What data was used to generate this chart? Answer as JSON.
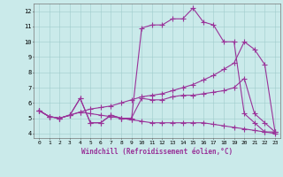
{
  "xlabel": "Windchill (Refroidissement éolien,°C)",
  "xlim": [
    -0.5,
    23.5
  ],
  "ylim": [
    3.7,
    12.5
  ],
  "xticks": [
    0,
    1,
    2,
    3,
    4,
    5,
    6,
    7,
    8,
    9,
    10,
    11,
    12,
    13,
    14,
    15,
    16,
    17,
    18,
    19,
    20,
    21,
    22,
    23
  ],
  "yticks": [
    4,
    5,
    6,
    7,
    8,
    9,
    10,
    11,
    12
  ],
  "background_color": "#caeaea",
  "line_color": "#993399",
  "line1_x": [
    0,
    1,
    2,
    3,
    4,
    5,
    6,
    7,
    8,
    9,
    10,
    11,
    12,
    13,
    14,
    15,
    16,
    17,
    18,
    19,
    20,
    21,
    22,
    23
  ],
  "line1_y": [
    5.5,
    5.1,
    5.0,
    5.2,
    6.3,
    4.7,
    4.7,
    5.2,
    5.0,
    4.9,
    10.9,
    11.1,
    11.1,
    11.5,
    11.5,
    12.2,
    11.3,
    11.1,
    10.0,
    10.0,
    5.3,
    4.7,
    4.1,
    4.1
  ],
  "line2_x": [
    0,
    1,
    2,
    3,
    4,
    5,
    6,
    7,
    8,
    9,
    10,
    11,
    12,
    13,
    14,
    15,
    16,
    17,
    18,
    19,
    20,
    21,
    22,
    23
  ],
  "line2_y": [
    5.5,
    5.1,
    5.0,
    5.2,
    5.4,
    5.6,
    5.7,
    5.8,
    6.0,
    6.2,
    6.4,
    6.5,
    6.6,
    6.8,
    7.0,
    7.2,
    7.5,
    7.8,
    8.2,
    8.6,
    10.0,
    9.5,
    8.5,
    4.1
  ],
  "line3_x": [
    0,
    1,
    2,
    3,
    4,
    5,
    6,
    7,
    8,
    9,
    10,
    11,
    12,
    13,
    14,
    15,
    16,
    17,
    18,
    19,
    20,
    21,
    22,
    23
  ],
  "line3_y": [
    5.5,
    5.1,
    5.0,
    5.2,
    6.3,
    4.7,
    4.7,
    5.2,
    5.0,
    5.0,
    6.3,
    6.2,
    6.2,
    6.4,
    6.5,
    6.5,
    6.6,
    6.7,
    6.8,
    7.0,
    7.6,
    5.3,
    4.7,
    4.1
  ],
  "line4_x": [
    0,
    1,
    2,
    3,
    4,
    5,
    6,
    7,
    8,
    9,
    10,
    11,
    12,
    13,
    14,
    15,
    16,
    17,
    18,
    19,
    20,
    21,
    22,
    23
  ],
  "line4_y": [
    5.5,
    5.1,
    5.0,
    5.2,
    5.4,
    5.3,
    5.2,
    5.1,
    5.0,
    4.9,
    4.8,
    4.7,
    4.7,
    4.7,
    4.7,
    4.7,
    4.7,
    4.6,
    4.5,
    4.4,
    4.3,
    4.2,
    4.1,
    4.0
  ],
  "marker_size": 4,
  "linewidth": 0.8
}
